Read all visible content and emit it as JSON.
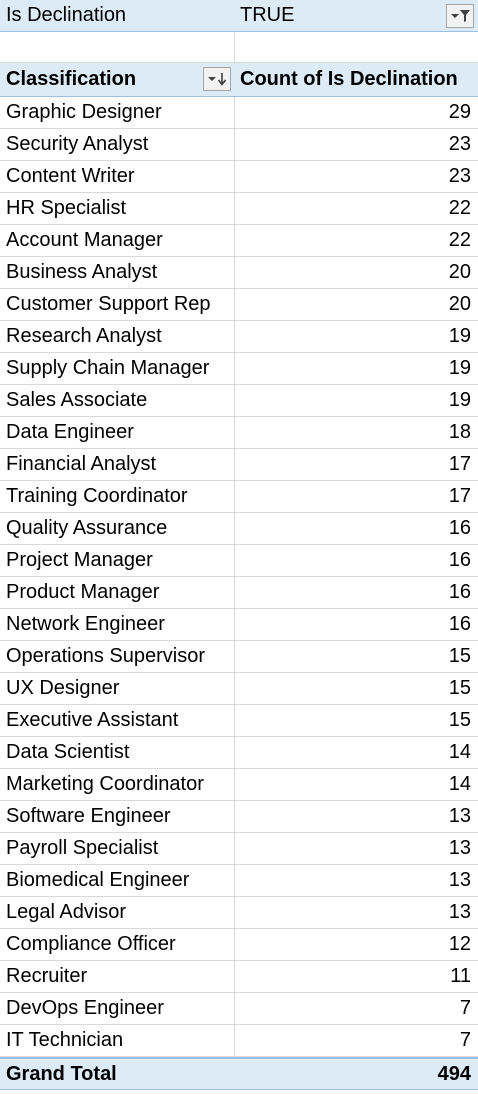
{
  "filter": {
    "field": "Is Declination",
    "value": "TRUE",
    "icon": "filter-dropdown-icon"
  },
  "header": {
    "classification": "Classification",
    "count": "Count of Is Declination",
    "icon": "sort-dropdown-icon"
  },
  "rows": [
    {
      "label": "Graphic Designer",
      "value": "29"
    },
    {
      "label": "Security Analyst",
      "value": "23"
    },
    {
      "label": "Content Writer",
      "value": "23"
    },
    {
      "label": "HR Specialist",
      "value": "22"
    },
    {
      "label": "Account Manager",
      "value": "22"
    },
    {
      "label": "Business Analyst",
      "value": "20"
    },
    {
      "label": "Customer Support Rep",
      "value": "20"
    },
    {
      "label": "Research Analyst",
      "value": "19"
    },
    {
      "label": "Supply Chain Manager",
      "value": "19"
    },
    {
      "label": "Sales Associate",
      "value": "19"
    },
    {
      "label": "Data Engineer",
      "value": "18"
    },
    {
      "label": "Financial Analyst",
      "value": "17"
    },
    {
      "label": "Training Coordinator",
      "value": "17"
    },
    {
      "label": "Quality Assurance",
      "value": "16"
    },
    {
      "label": "Project Manager",
      "value": "16"
    },
    {
      "label": "Product Manager",
      "value": "16"
    },
    {
      "label": "Network Engineer",
      "value": "16"
    },
    {
      "label": "Operations Supervisor",
      "value": "15"
    },
    {
      "label": "UX Designer",
      "value": "15"
    },
    {
      "label": "Executive Assistant",
      "value": "15"
    },
    {
      "label": "Data Scientist",
      "value": "14"
    },
    {
      "label": "Marketing Coordinator",
      "value": "14"
    },
    {
      "label": "Software Engineer",
      "value": "13"
    },
    {
      "label": "Payroll Specialist",
      "value": "13"
    },
    {
      "label": "Biomedical Engineer",
      "value": "13"
    },
    {
      "label": "Legal Advisor",
      "value": "13"
    },
    {
      "label": "Compliance Officer",
      "value": "12"
    },
    {
      "label": "Recruiter",
      "value": "11"
    },
    {
      "label": "DevOps Engineer",
      "value": "7"
    },
    {
      "label": "IT Technician",
      "value": "7"
    }
  ],
  "total": {
    "label": "Grand Total",
    "value": "494"
  },
  "colors": {
    "header_fill": "#ddebf7",
    "header_border": "#9bc2e6",
    "gridline": "#d9d9d9"
  }
}
